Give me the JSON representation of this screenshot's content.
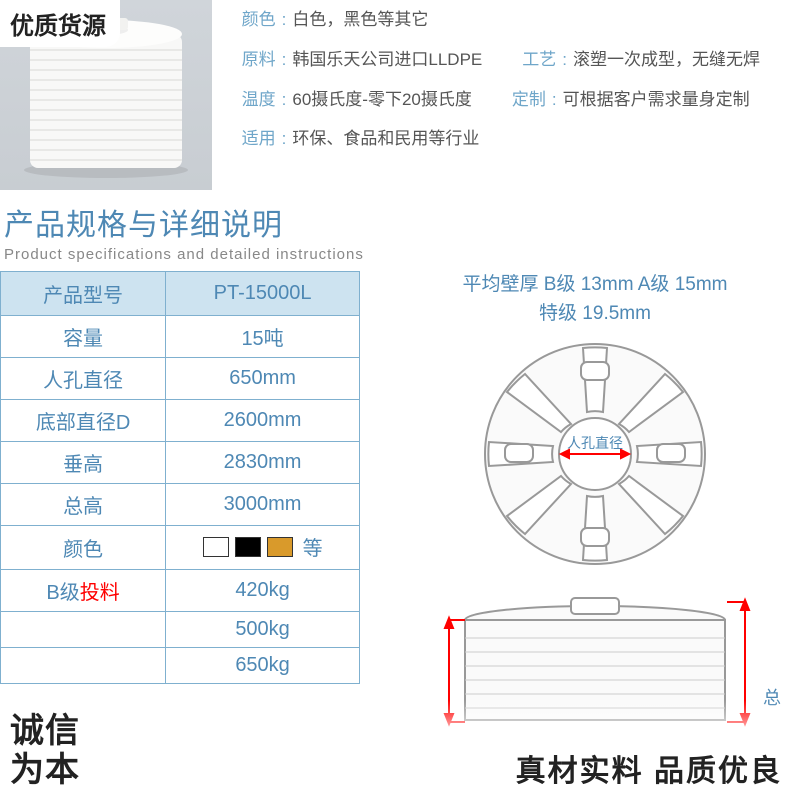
{
  "badge_topleft": "优质货源",
  "attrs": {
    "color": {
      "label": "颜色",
      "value": "白色，黑色等其它"
    },
    "material": {
      "label": "原料",
      "value": "韩国乐天公司进口LLDPE"
    },
    "process": {
      "label": "工艺",
      "value": "滚塑一次成型，无缝无焊"
    },
    "temperature": {
      "label": "温度",
      "value": "60摄氏度-零下20摄氏度"
    },
    "custom": {
      "label": "定制",
      "value": "可根据客户需求量身定制"
    },
    "application": {
      "label": "适用",
      "value": "环保、食品和民用等行业"
    },
    "colon": ":"
  },
  "section": {
    "title_zh": "产品规格与详细说明",
    "title_en": "Product specifications and detailed instructions"
  },
  "table": {
    "header": {
      "label": "产品型号",
      "value": "PT-15000L"
    },
    "rows": [
      {
        "label": "容量",
        "value": "15吨"
      },
      {
        "label": "人孔直径",
        "value": "650mm"
      },
      {
        "label": "底部直径D",
        "value": "2600mm"
      },
      {
        "label": "垂高",
        "value": "2830mm"
      },
      {
        "label": "总高",
        "value": "3000mm"
      }
    ],
    "color_row": {
      "label": "颜色",
      "swatch_colors": [
        "#ffffff",
        "#000000",
        "#d99a2b"
      ],
      "suffix": "等"
    },
    "b_row": {
      "label_prefix": "B级",
      "label_suffix": "投料",
      "value": "420kg"
    },
    "extra_rows": [
      {
        "label": "",
        "value": "500kg"
      },
      {
        "label": "",
        "value": "650kg"
      }
    ],
    "border_color": "#7fb0cf",
    "header_bg": "#cde3f0",
    "text_color": "#4e88b4"
  },
  "diagram": {
    "title_line1": "平均壁厚  B级 13mm   A级 15mm",
    "title_line2": "特级 19.5mm",
    "top_view_label": "人孔直径",
    "side_view_right_label": "总",
    "colors": {
      "stroke": "#999999",
      "label": "#4e88b4",
      "arrow": "#ff0000",
      "tank_fill": "#f5f5f5"
    }
  },
  "bottom": {
    "left_line1": "诚信",
    "left_line2": "为本",
    "right": "真材实料 品质优良"
  },
  "product_render": {
    "body_fill": "#f8f8f7",
    "rib_color": "#e8e8e6",
    "shadow": "#b8bcc0"
  }
}
